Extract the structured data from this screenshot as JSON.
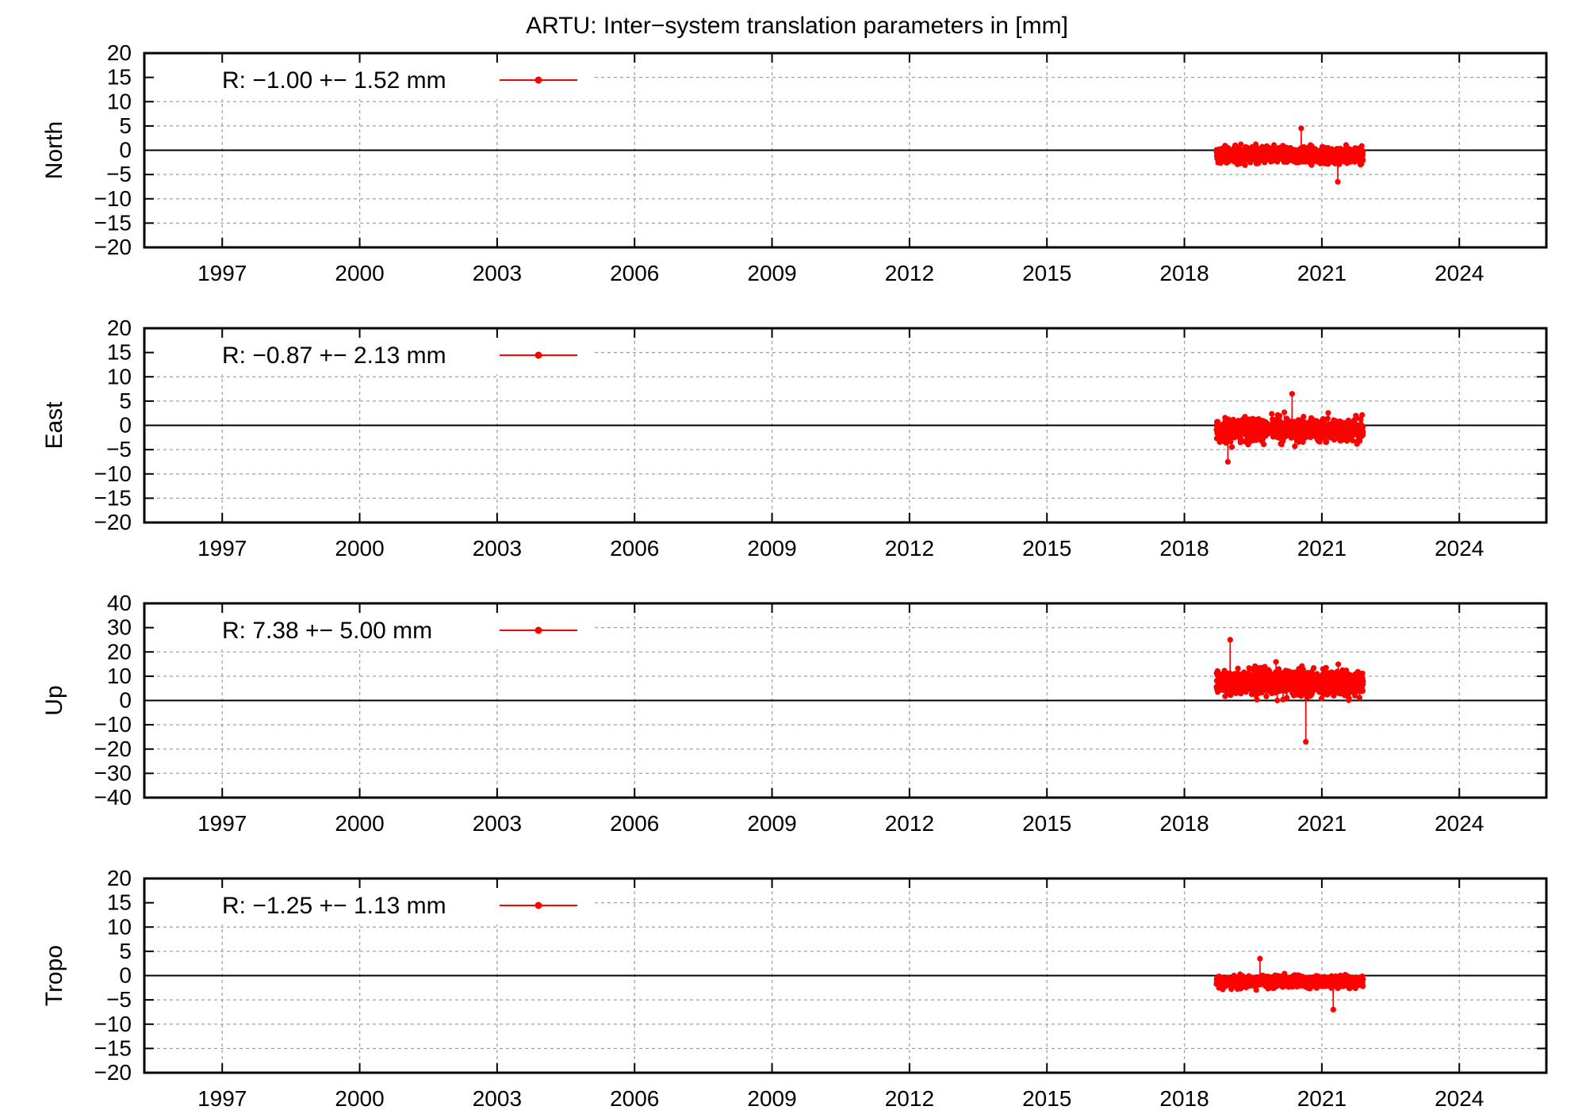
{
  "title": "ARTU: Inter−system translation parameters in [mm]",
  "colors": {
    "series": "#ff0000",
    "grid": "#a0a0a0",
    "axis": "#000000"
  },
  "chart_data": [
    {
      "type": "scatter",
      "ylabel": "North",
      "xlim": [
        1995.3,
        2025.9
      ],
      "ylim": [
        -20,
        20
      ],
      "yticks": [
        20,
        15,
        10,
        5,
        0,
        -5,
        -10,
        -15,
        -20
      ],
      "xticks": [
        1997,
        2000,
        2003,
        2006,
        2009,
        2012,
        2015,
        2018,
        2021,
        2024
      ],
      "legend": "R:  −1.00 +− 1.52 mm",
      "legend_position": "top-left",
      "grid": true,
      "series": [
        {
          "x_range": [
            2018.7,
            2021.9
          ],
          "mean": -1.0,
          "spread": 1.52,
          "min_point": {
            "x": 2021.35,
            "y": -6.5
          },
          "max_point": {
            "x": 2020.55,
            "y": 4.5
          }
        }
      ]
    },
    {
      "type": "scatter",
      "ylabel": "East",
      "xlim": [
        1995.3,
        2025.9
      ],
      "ylim": [
        -20,
        20
      ],
      "yticks": [
        20,
        15,
        10,
        5,
        0,
        -5,
        -10,
        -15,
        -20
      ],
      "xticks": [
        1997,
        2000,
        2003,
        2006,
        2009,
        2012,
        2015,
        2018,
        2021,
        2024
      ],
      "legend": "R:  −0.87 +− 2.13 mm",
      "legend_position": "top-left",
      "grid": true,
      "series": [
        {
          "x_range": [
            2018.7,
            2021.9
          ],
          "mean": -0.87,
          "spread": 2.13,
          "min_point": {
            "x": 2018.95,
            "y": -7.5
          },
          "max_point": {
            "x": 2020.35,
            "y": 6.5
          }
        }
      ]
    },
    {
      "type": "scatter",
      "ylabel": "Up",
      "xlim": [
        1995.3,
        2025.9
      ],
      "ylim": [
        -40,
        40
      ],
      "yticks": [
        40,
        30,
        20,
        10,
        0,
        -10,
        -20,
        -30,
        -40
      ],
      "xticks": [
        1997,
        2000,
        2003,
        2006,
        2009,
        2012,
        2015,
        2018,
        2021,
        2024
      ],
      "legend": "R:   7.38 +− 5.00 mm",
      "legend_position": "top-left",
      "grid": true,
      "series": [
        {
          "x_range": [
            2018.7,
            2021.9
          ],
          "mean": 7.38,
          "spread": 5.0,
          "min_point": {
            "x": 2020.65,
            "y": -17
          },
          "max_point": {
            "x": 2019.0,
            "y": 25
          }
        }
      ]
    },
    {
      "type": "scatter",
      "ylabel": "Tropo",
      "xlim": [
        1995.3,
        2025.9
      ],
      "ylim": [
        -20,
        20
      ],
      "yticks": [
        20,
        15,
        10,
        5,
        0,
        -5,
        -10,
        -15,
        -20
      ],
      "xticks": [
        1997,
        2000,
        2003,
        2006,
        2009,
        2012,
        2015,
        2018,
        2021,
        2024
      ],
      "legend": "R:  −1.25 +− 1.13 mm",
      "legend_position": "top-left",
      "grid": true,
      "series": [
        {
          "x_range": [
            2018.7,
            2021.9
          ],
          "mean": -1.25,
          "spread": 1.13,
          "min_point": {
            "x": 2021.25,
            "y": -7
          },
          "max_point": {
            "x": 2019.65,
            "y": 3.5
          }
        }
      ]
    }
  ]
}
